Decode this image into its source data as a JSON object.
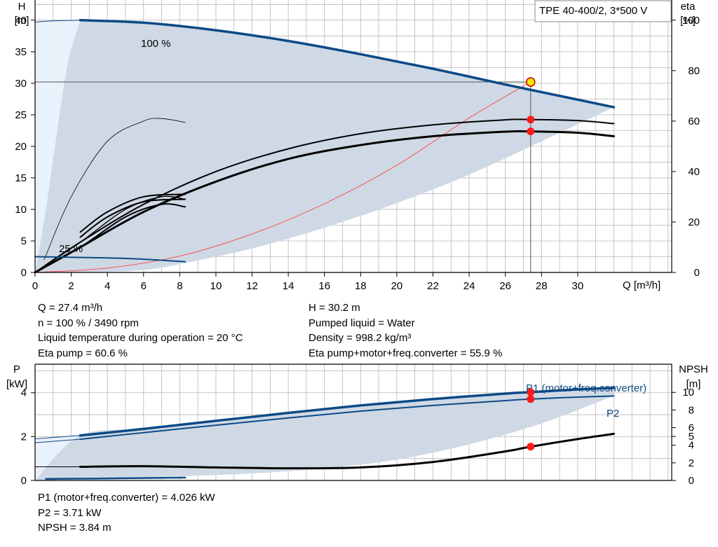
{
  "colors": {
    "blue": "#0c4a86",
    "band": "#cfd9e5",
    "band_light": "#e9f1fa",
    "grid": "#b7b7b7",
    "op_red": "#ff1a1a",
    "op_yellow": "#ffe600",
    "system_curve": "#ff4040"
  },
  "top_chart": {
    "chart_data": {
      "type": "line",
      "model_label": "TPE 40-400/2, 3*500 V",
      "ylabel_left": "H",
      "ylabel_left_unit": "[m]",
      "ylabel_right": "eta",
      "ylabel_right_unit": "[%]",
      "xlabel": "Q [m³/h]",
      "xlim": [
        0,
        35.2
      ],
      "ylim": [
        0,
        43.2
      ],
      "y2lim": [
        0,
        108
      ],
      "x_ticks": [
        "0",
        "2",
        "4",
        "6",
        "8",
        "10",
        "12",
        "14",
        "16",
        "18",
        "20",
        "22",
        "24",
        "26",
        "28",
        "30"
      ],
      "y_ticks": [
        "0",
        "5",
        "10",
        "15",
        "20",
        "25",
        "30",
        "35",
        "40"
      ],
      "y2_ticks": [
        "0",
        "20",
        "40",
        "60",
        "80",
        "100"
      ],
      "curve_labels": {
        "max": "100 %",
        "min": "25 %"
      },
      "series": [
        {
          "id": "h100",
          "x": [
            2.5,
            6,
            10,
            14,
            18,
            22,
            26,
            29,
            32
          ],
          "y": [
            40,
            39.6,
            38.4,
            36.7,
            34.6,
            32.3,
            29.8,
            28.0,
            26.2
          ]
        },
        {
          "id": "h100_extension",
          "x": [
            0,
            1,
            2.5
          ],
          "y": [
            39.7,
            39.9,
            40
          ]
        },
        {
          "id": "h25",
          "x": [
            0,
            2,
            4,
            6,
            8.3
          ],
          "y": [
            2.5,
            2.4,
            2.3,
            2.1,
            1.7
          ]
        },
        {
          "id": "eta_unit_100",
          "x": [
            0,
            2.5,
            6,
            10,
            14,
            18,
            22,
            26,
            27.4,
            30,
            32
          ],
          "y": [
            0,
            12,
            27,
            40,
            49,
            55,
            58.5,
            60.5,
            60.6,
            60.2,
            59
          ]
        },
        {
          "id": "eta_total_100",
          "x": [
            0,
            2.5,
            6,
            10,
            14,
            18,
            22,
            26,
            27.4,
            30,
            32
          ],
          "y": [
            0,
            10,
            24,
            36,
            45,
            50.5,
            54,
            55.8,
            55.9,
            55.4,
            54
          ]
        },
        {
          "id": "eta_unit_25",
          "x": [
            0,
            2.5,
            5,
            7,
            8.3
          ],
          "y": [
            0,
            12,
            25,
            30,
            29
          ]
        },
        {
          "id": "eta_total_25",
          "x": [
            0,
            2.5,
            5,
            7,
            8.3
          ],
          "y": [
            0,
            10,
            22,
            27,
            26
          ]
        },
        {
          "id": "eta_mid_a",
          "x": [
            2.5,
            4,
            6,
            8.3
          ],
          "y": [
            16,
            24,
            30,
            31
          ]
        },
        {
          "id": "eta_mid_b",
          "x": [
            2.5,
            4,
            6,
            8.3
          ],
          "y": [
            14,
            22,
            28,
            29
          ]
        },
        {
          "id": "eta_thin_arc",
          "x": [
            0.5,
            2,
            4,
            6,
            7,
            8.3
          ],
          "y": [
            5,
            30,
            52,
            60,
            61,
            59.5
          ]
        },
        {
          "id": "system_curve",
          "x": [
            0,
            4,
            8,
            12,
            16,
            20,
            24,
            27.4
          ],
          "y": [
            0,
            0.7,
            2.6,
            6.1,
            10.9,
            17.0,
            24.5,
            30.2
          ]
        },
        {
          "id": "band_lower",
          "x": [
            0,
            2.5,
            6,
            8.3,
            12,
            16,
            20,
            24,
            28,
            32
          ],
          "y": [
            0,
            0,
            0.4,
            1.5,
            3.8,
            7.1,
            11.0,
            15.5,
            20.8,
            26.2
          ]
        },
        {
          "id": "band_left",
          "x": [
            0,
            0.6,
            1.2,
            1.8,
            2.5
          ],
          "y": [
            0,
            10,
            22,
            33,
            40
          ]
        }
      ],
      "operating_point": {
        "Q": 27.4,
        "H": 30.2,
        "eta_unit": 60.6,
        "eta_total": 55.9
      }
    },
    "readout": {
      "q": "Q = 27.4 m³/h",
      "n": "n = 100 % / 3490 rpm",
      "temp": "Liquid temperature during operation = 20 °C",
      "eta_pump": "Eta pump = 60.6 %",
      "h": "H = 30.2 m",
      "liquid": "Pumped liquid = Water",
      "density": "Density = 998.2 kg/m³",
      "eta_total": "Eta pump+motor+freq.converter = 55.9 %"
    }
  },
  "bottom_chart": {
    "chart_data": {
      "type": "line",
      "ylabel_left": "P",
      "ylabel_left_unit": "[kW]",
      "ylabel_right": "NPSH",
      "ylabel_right_unit": "[m]",
      "xlim": [
        0,
        35.2
      ],
      "ylim": [
        0,
        5.3
      ],
      "y2lim": [
        0,
        13.2
      ],
      "y_ticks": [
        "0",
        "2",
        "4"
      ],
      "y2_ticks": [
        "0",
        "2",
        "4",
        "5",
        "6",
        "8",
        "10"
      ],
      "series_labels": {
        "p1": "P1 (motor+freq.converter)",
        "p2": "P2"
      },
      "series": [
        {
          "id": "p1_100",
          "x": [
            2.5,
            6,
            10,
            14,
            18,
            22,
            26,
            27.4,
            30,
            32
          ],
          "y": [
            2.05,
            2.35,
            2.72,
            3.08,
            3.42,
            3.71,
            3.96,
            4.026,
            4.15,
            4.22
          ]
        },
        {
          "id": "p2_100",
          "x": [
            2.5,
            6,
            10,
            14,
            18,
            22,
            26,
            27.4,
            30,
            32
          ],
          "y": [
            1.88,
            2.18,
            2.52,
            2.85,
            3.16,
            3.42,
            3.64,
            3.71,
            3.8,
            3.85
          ]
        },
        {
          "id": "p1_ext",
          "x": [
            0,
            2.5
          ],
          "y": [
            1.9,
            2.05
          ]
        },
        {
          "id": "p2_ext",
          "x": [
            0,
            2.5
          ],
          "y": [
            1.72,
            1.88
          ]
        },
        {
          "id": "p1_25",
          "x": [
            0.6,
            4,
            8.3
          ],
          "y": [
            0.07,
            0.09,
            0.13
          ]
        },
        {
          "id": "npsh",
          "x": [
            2.5,
            6,
            10,
            14,
            18,
            22,
            26,
            27.4,
            30,
            32
          ],
          "y": [
            1.55,
            1.62,
            1.48,
            1.38,
            1.48,
            2.1,
            3.3,
            3.84,
            4.7,
            5.3
          ]
        },
        {
          "id": "npsh_ext",
          "x": [
            0,
            2.5
          ],
          "y": [
            1.55,
            1.55
          ]
        },
        {
          "id": "band_upper",
          "x": [
            0,
            2.5,
            6,
            10,
            14,
            18,
            22,
            26,
            30,
            32
          ],
          "y": [
            0,
            2.05,
            2.35,
            2.72,
            3.08,
            3.42,
            3.71,
            3.96,
            4.15,
            4.22
          ]
        },
        {
          "id": "band_lower",
          "x": [
            0,
            4,
            8.3,
            12,
            16,
            20,
            24,
            28,
            32
          ],
          "y": [
            0,
            0.1,
            0.2,
            0.32,
            0.55,
            0.95,
            1.65,
            2.6,
            3.85
          ]
        }
      ],
      "operating_point": {
        "Q": 27.4,
        "P1": 4.026,
        "P2": 3.71,
        "NPSH": 3.84
      }
    },
    "readout": {
      "p1": "P1 (motor+freq.converter) = 4.026 kW",
      "p2": "P2 = 3.71 kW",
      "npsh": "NPSH = 3.84 m"
    }
  }
}
